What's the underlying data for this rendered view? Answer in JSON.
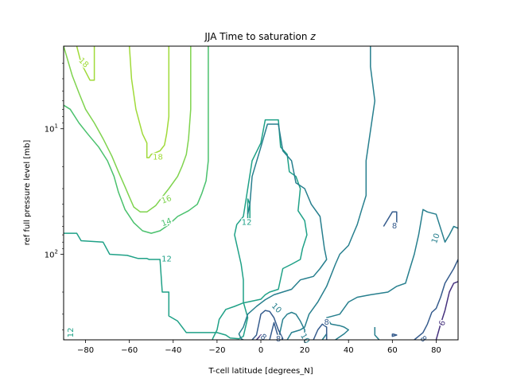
{
  "chart_data": {
    "type": "contour",
    "title": "JJA Time to saturation",
    "title_variable": "z",
    "xlabel": "T-cell latitude [degrees_N]",
    "ylabel": "ref full pressure level [mb]",
    "xlim": [
      -90,
      90
    ],
    "ylim": [
      480,
      2.2
    ],
    "y_scale": "log",
    "y_inverted": true,
    "grid": false,
    "x_ticks": [
      -80,
      -60,
      -40,
      -20,
      0,
      20,
      40,
      60,
      80
    ],
    "y_ticks": [
      {
        "value": 10,
        "base": "10",
        "exp": "1"
      },
      {
        "value": 100,
        "base": "10",
        "exp": "2"
      }
    ],
    "levels": [
      {
        "level": 6,
        "color": "#46327e"
      },
      {
        "level": 8,
        "color": "#365c8d"
      },
      {
        "level": 10,
        "color": "#277f8e"
      },
      {
        "level": 12,
        "color": "#1fa187"
      },
      {
        "level": 14,
        "color": "#4ac16d"
      },
      {
        "level": 16,
        "color": "#7fd34e"
      },
      {
        "level": 18,
        "color": "#a0da39"
      }
    ],
    "contours": [
      {
        "level": 18,
        "points": [
          [
            -84,
            2.2
          ],
          [
            -82,
            3
          ],
          [
            -78,
            4.1
          ],
          [
            -76,
            4.1
          ],
          [
            -76,
            2.2
          ]
        ]
      },
      {
        "level": 18,
        "points": [
          [
            -60,
            2.2
          ],
          [
            -59,
            4
          ],
          [
            -57,
            7
          ],
          [
            -54,
            11
          ],
          [
            -52,
            13
          ],
          [
            -52,
            17
          ],
          [
            -51,
            17
          ],
          [
            -50,
            16
          ],
          [
            -48,
            15.5
          ],
          [
            -46,
            15
          ],
          [
            -44,
            13.5
          ],
          [
            -43,
            11
          ],
          [
            -42,
            8
          ],
          [
            -42,
            3
          ],
          [
            -42,
            2.2
          ]
        ]
      },
      {
        "level": 16,
        "points": [
          [
            -90,
            2.2
          ],
          [
            -86,
            3.8
          ],
          [
            -83,
            5.2
          ],
          [
            -80,
            7
          ],
          [
            -76,
            9
          ],
          [
            -72,
            12
          ],
          [
            -68,
            16.5
          ],
          [
            -65,
            22
          ],
          [
            -62,
            29
          ],
          [
            -60,
            35
          ],
          [
            -58,
            42
          ],
          [
            -55,
            46
          ],
          [
            -52,
            46
          ],
          [
            -48,
            41
          ],
          [
            -45,
            35
          ],
          [
            -42,
            30
          ],
          [
            -38,
            24
          ],
          [
            -36,
            20
          ],
          [
            -34,
            16
          ],
          [
            -33,
            12
          ],
          [
            -32,
            7
          ],
          [
            -32,
            4
          ],
          [
            -32,
            2.2
          ]
        ]
      },
      {
        "level": 14,
        "points": [
          [
            -90,
            6.5
          ],
          [
            -87,
            7
          ],
          [
            -83,
            9
          ],
          [
            -79,
            11
          ],
          [
            -74,
            14
          ],
          [
            -70,
            18
          ],
          [
            -67,
            24
          ],
          [
            -65,
            32
          ],
          [
            -62,
            44
          ],
          [
            -58,
            56
          ],
          [
            -54,
            65
          ],
          [
            -50,
            68
          ],
          [
            -46,
            65
          ],
          [
            -42,
            58
          ],
          [
            -38,
            50
          ],
          [
            -33,
            45
          ],
          [
            -29,
            40
          ],
          [
            -27,
            33
          ],
          [
            -25,
            26
          ],
          [
            -24,
            18
          ],
          [
            -24,
            11
          ],
          [
            -24,
            6
          ],
          [
            -24,
            2.2
          ]
        ]
      },
      {
        "level": 12,
        "points": [
          [
            -90,
            68
          ],
          [
            -84,
            68
          ],
          [
            -82,
            78
          ],
          [
            -72,
            80
          ],
          [
            -69,
            100
          ],
          [
            -61,
            102
          ],
          [
            -56,
            108
          ],
          [
            -52,
            108
          ],
          [
            -51,
            110
          ],
          [
            -46,
            110
          ],
          [
            -45,
            200
          ],
          [
            -42,
            200
          ],
          [
            -42,
            310
          ],
          [
            -38,
            340
          ],
          [
            -34,
            420
          ],
          [
            -20,
            420
          ],
          [
            -16,
            440
          ],
          [
            -14,
            465
          ],
          [
            -10,
            470
          ],
          [
            -8,
            450
          ],
          [
            -6,
            320
          ],
          [
            -8,
            240
          ],
          [
            -8,
            160
          ],
          [
            -9,
            120
          ],
          [
            -10,
            100
          ],
          [
            -12,
            70
          ],
          [
            -11,
            58
          ],
          [
            -8,
            50
          ],
          [
            -4,
            18
          ],
          [
            0,
            13
          ],
          [
            2,
            8.5
          ],
          [
            8,
            8.5
          ],
          [
            9,
            14
          ],
          [
            12,
            16
          ],
          [
            13,
            22
          ],
          [
            16,
            24
          ],
          [
            18,
            30
          ],
          [
            17,
            45
          ],
          [
            20,
            54
          ],
          [
            21,
            70
          ],
          [
            19,
            90
          ],
          [
            18,
            110
          ],
          [
            14,
            120
          ],
          [
            10,
            130
          ],
          [
            8,
            190
          ],
          [
            4,
            200
          ],
          [
            2,
            210
          ],
          [
            0,
            228
          ],
          [
            -6,
            240
          ],
          [
            -8,
            244
          ],
          [
            -12,
            260
          ],
          [
            -16,
            275
          ],
          [
            -19,
            330
          ],
          [
            -20,
            400
          ],
          [
            -22,
            470
          ],
          [
            -22,
            480
          ]
        ]
      },
      {
        "level": 12,
        "points": [
          [
            -6,
            36
          ],
          [
            -6,
            52
          ],
          [
            -5,
            56
          ],
          [
            -5,
            40
          ],
          [
            -6,
            36
          ]
        ]
      },
      {
        "level": 10,
        "points": [
          [
            -6,
            48
          ],
          [
            -5,
            40
          ],
          [
            -4,
            24
          ],
          [
            0,
            14
          ],
          [
            3,
            9.2
          ],
          [
            8,
            9.2
          ],
          [
            10,
            15
          ],
          [
            14,
            18
          ],
          [
            16,
            27
          ],
          [
            20,
            30
          ],
          [
            23,
            40
          ],
          [
            27,
            50
          ],
          [
            29,
            90
          ],
          [
            30,
            110
          ],
          [
            27,
            130
          ],
          [
            24,
            150
          ],
          [
            18,
            160
          ],
          [
            14,
            190
          ],
          [
            6,
            210
          ],
          [
            2,
            230
          ],
          [
            -2,
            260
          ],
          [
            -6,
            300
          ],
          [
            -8,
            380
          ],
          [
            -10,
            430
          ],
          [
            -9,
            470
          ],
          [
            -8,
            480
          ]
        ]
      },
      {
        "level": 10,
        "points": [
          [
            -90,
            480
          ],
          [
            -90,
            470
          ]
        ]
      },
      {
        "level": 10,
        "points": [
          [
            12,
            480
          ],
          [
            14,
            420
          ],
          [
            18,
            400
          ],
          [
            20,
            380
          ],
          [
            22,
            300
          ],
          [
            26,
            240
          ],
          [
            30,
            180
          ],
          [
            34,
            120
          ],
          [
            36,
            100
          ],
          [
            40,
            85
          ],
          [
            42,
            70
          ],
          [
            44,
            58
          ],
          [
            46,
            44
          ],
          [
            48,
            34
          ],
          [
            48,
            18
          ],
          [
            52,
            6
          ],
          [
            50,
            3.2
          ],
          [
            50,
            2.2
          ]
        ]
      },
      {
        "level": 10,
        "points": [
          [
            8,
            480
          ],
          [
            10,
            330
          ],
          [
            12,
            300
          ],
          [
            14,
            290
          ],
          [
            16,
            300
          ],
          [
            18,
            340
          ],
          [
            20,
            400
          ],
          [
            20,
            480
          ]
        ]
      },
      {
        "level": 10,
        "points": [
          [
            28,
            480
          ],
          [
            30,
            430
          ],
          [
            30,
            480
          ]
        ]
      },
      {
        "level": 10,
        "points": [
          [
            34,
            480
          ],
          [
            38,
            430
          ],
          [
            40,
            400
          ],
          [
            38,
            380
          ],
          [
            36,
            370
          ],
          [
            32,
            360
          ],
          [
            30,
            320
          ],
          [
            36,
            300
          ],
          [
            40,
            240
          ],
          [
            44,
            220
          ],
          [
            50,
            210
          ],
          [
            58,
            200
          ],
          [
            62,
            180
          ],
          [
            66,
            170
          ],
          [
            68,
            130
          ],
          [
            70,
            100
          ],
          [
            72,
            70
          ],
          [
            74,
            44
          ],
          [
            76,
            46
          ],
          [
            80,
            48
          ],
          [
            84,
            80
          ],
          [
            86,
            70
          ],
          [
            88,
            60
          ],
          [
            90,
            62
          ]
        ]
      },
      {
        "level": 10,
        "points": [
          [
            54,
            480
          ],
          [
            52,
            440
          ],
          [
            52,
            380
          ]
        ]
      },
      {
        "level": 8,
        "points": [
          [
            -4,
            480
          ],
          [
            -2,
            440
          ],
          [
            0,
            300
          ],
          [
            2,
            280
          ],
          [
            4,
            285
          ],
          [
            6,
            320
          ],
          [
            8,
            400
          ],
          [
            10,
            470
          ],
          [
            8,
            480
          ]
        ]
      },
      {
        "level": 8,
        "points": [
          [
            4,
            480
          ],
          [
            6,
            350
          ],
          [
            8,
            460
          ],
          [
            8,
            480
          ]
        ]
      },
      {
        "level": 8,
        "points": [
          [
            24,
            480
          ],
          [
            26,
            400
          ],
          [
            28,
            360
          ],
          [
            30,
            380
          ],
          [
            30,
            480
          ]
        ]
      },
      {
        "level": 8,
        "points": [
          [
            56,
            60
          ],
          [
            60,
            46
          ],
          [
            62,
            46
          ],
          [
            62,
            60
          ]
        ]
      },
      {
        "level": 8,
        "points": [
          [
            70,
            480
          ],
          [
            74,
            420
          ],
          [
            76,
            360
          ],
          [
            78,
            290
          ],
          [
            80,
            270
          ],
          [
            82,
            220
          ],
          [
            84,
            170
          ],
          [
            88,
            130
          ],
          [
            90,
            110
          ]
        ]
      },
      {
        "level": 8,
        "points": [
          [
            60,
            430
          ],
          [
            62,
            440
          ],
          [
            60,
            450
          ],
          [
            60,
            430
          ]
        ]
      },
      {
        "level": 6,
        "points": [
          [
            -2,
            480
          ],
          [
            0,
            440
          ],
          [
            2,
            440
          ],
          [
            2,
            480
          ]
        ]
      },
      {
        "level": 6,
        "points": [
          [
            80,
            480
          ],
          [
            82,
            360
          ],
          [
            84,
            280
          ],
          [
            86,
            200
          ],
          [
            88,
            170
          ],
          [
            90,
            165
          ]
        ]
      }
    ],
    "contour_labels": [
      {
        "text": "18",
        "x": -81,
        "y": 3,
        "rotation": 45,
        "level": 18
      },
      {
        "text": "18",
        "x": -47,
        "y": 17,
        "rotation": 0,
        "level": 18
      },
      {
        "text": "16",
        "x": -43,
        "y": 37,
        "rotation": -20,
        "level": 16
      },
      {
        "text": "14",
        "x": -43,
        "y": 56,
        "rotation": -20,
        "level": 14
      },
      {
        "text": "12",
        "x": -43,
        "y": 110,
        "rotation": 0,
        "level": 12
      },
      {
        "text": "12",
        "x": -6.5,
        "y": 56,
        "rotation": 0,
        "level": 12
      },
      {
        "text": "12",
        "x": -86.5,
        "y": 420,
        "rotation": -90,
        "level": 12
      },
      {
        "text": "10",
        "x": 7,
        "y": 270,
        "rotation": 45,
        "level": 10
      },
      {
        "text": "10",
        "x": 80,
        "y": 75,
        "rotation": -70,
        "level": 10
      },
      {
        "text": "10",
        "x": 20,
        "y": 470,
        "rotation": 60,
        "level": 10
      },
      {
        "text": "8",
        "x": 61,
        "y": 60,
        "rotation": 0,
        "level": 8
      },
      {
        "text": "8",
        "x": 30,
        "y": 350,
        "rotation": 0,
        "level": 8
      },
      {
        "text": "8",
        "x": 1,
        "y": 460,
        "rotation": 40,
        "level": 8
      },
      {
        "text": "8",
        "x": 8,
        "y": 475,
        "rotation": 0,
        "level": 8
      },
      {
        "text": "8",
        "x": 74,
        "y": 475,
        "rotation": 50,
        "level": 8
      },
      {
        "text": "6",
        "x": 83,
        "y": 355,
        "rotation": -70,
        "level": 6
      }
    ]
  }
}
